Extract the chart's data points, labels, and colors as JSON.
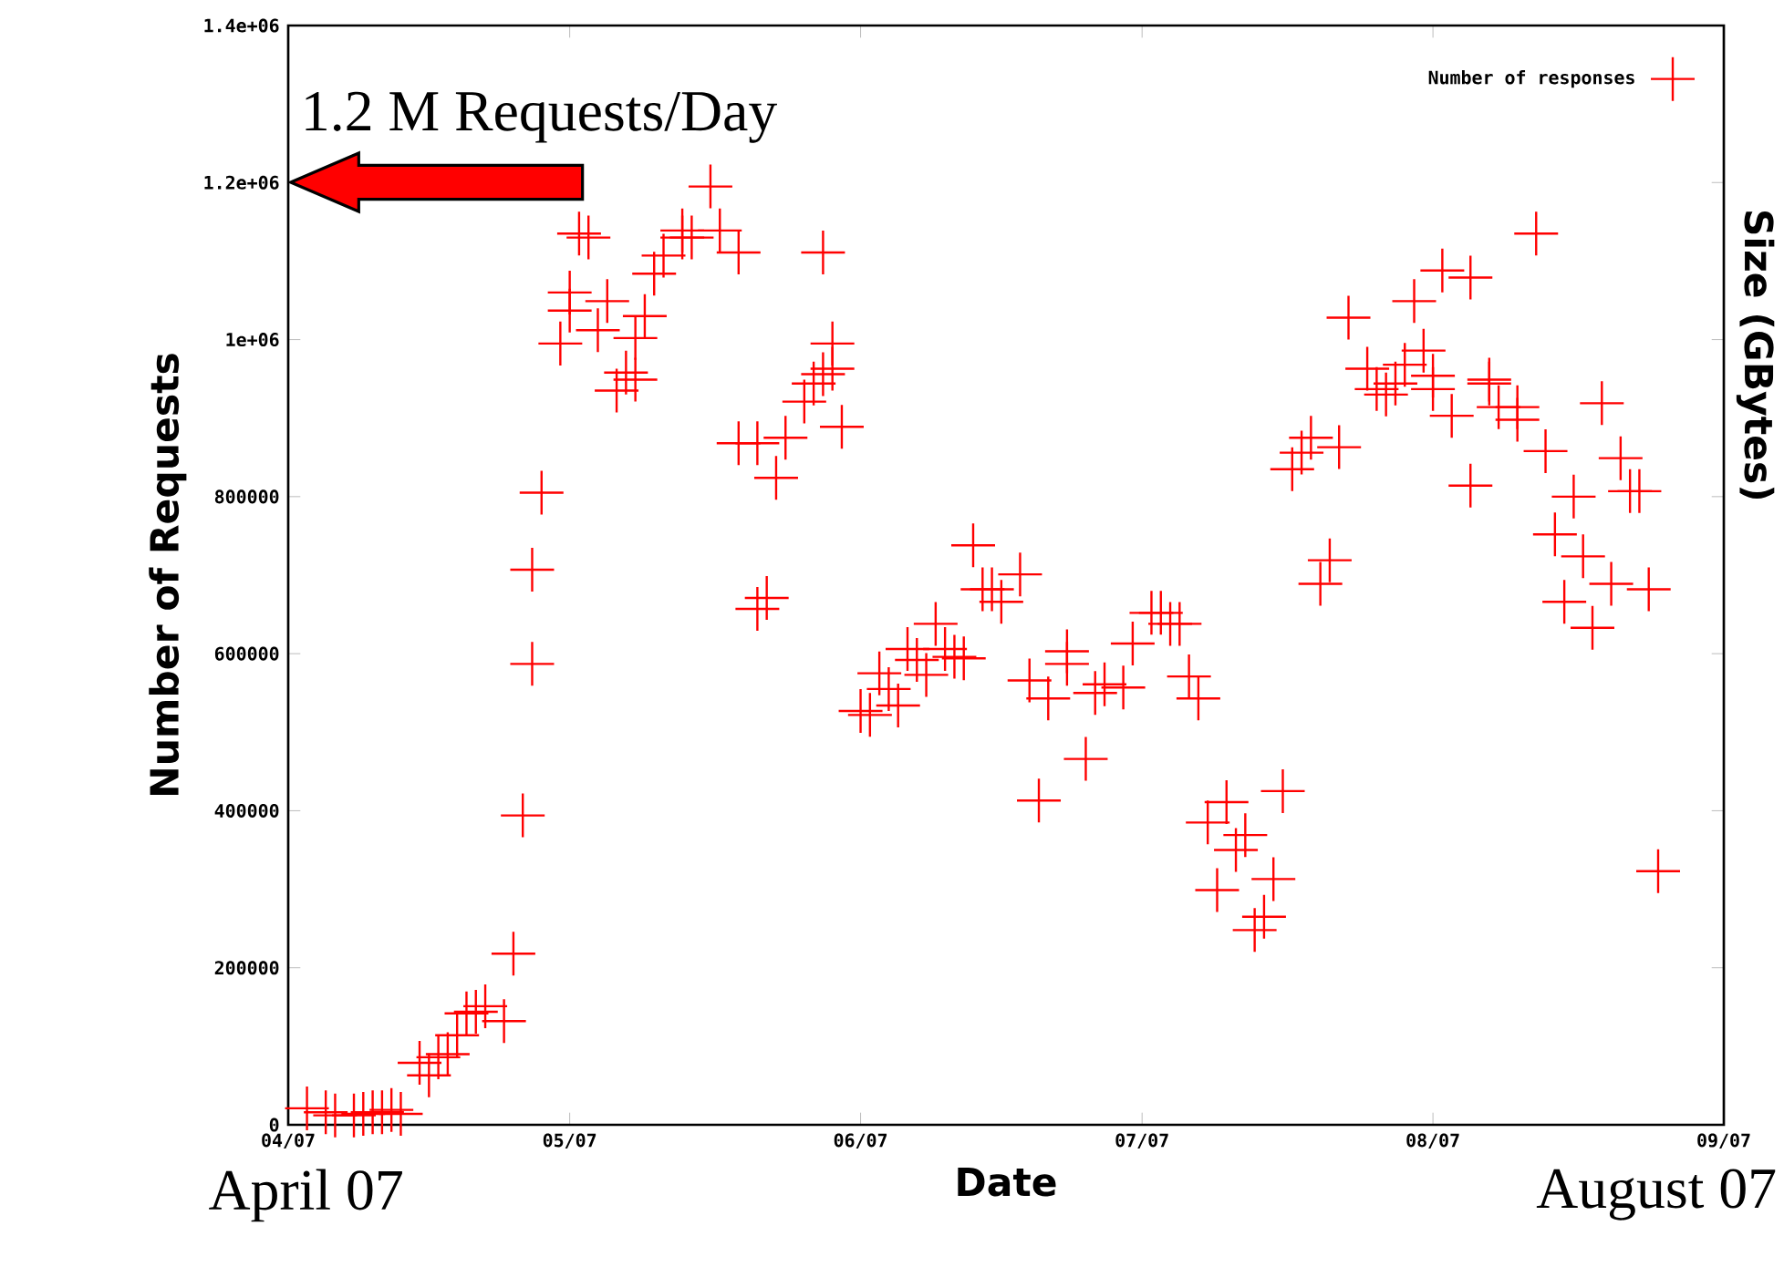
{
  "chart_data": {
    "type": "scatter",
    "xlabel": "Date",
    "ylabel": "Number of Requests",
    "y2label": "Size (GBytes)",
    "xlim": [
      "2007-04-01",
      "2007-09-01"
    ],
    "xticks": [
      {
        "value": "2007-04-01",
        "label": "04/07"
      },
      {
        "value": "2007-05-01",
        "label": "05/07"
      },
      {
        "value": "2007-06-01",
        "label": "06/07"
      },
      {
        "value": "2007-07-01",
        "label": "07/07"
      },
      {
        "value": "2007-08-01",
        "label": "08/07"
      },
      {
        "value": "2007-09-01",
        "label": "09/07"
      }
    ],
    "ylim": [
      0,
      1400000
    ],
    "yticks": [
      0,
      200000,
      400000,
      600000,
      800000,
      {
        "value": 1000000,
        "label": "1e+06"
      },
      {
        "value": 1200000,
        "label": "1.2e+06"
      },
      {
        "value": 1400000,
        "label": "1.4e+06"
      }
    ],
    "legend": "top right",
    "marker": "cross",
    "annotations": [
      "1.2 M Requests/Day",
      "April 07",
      "August 07"
    ],
    "series": [
      {
        "name": "Number of responses",
        "color": "#ff0000",
        "x": [
          "2007-04-03",
          "2007-04-05",
          "2007-04-06",
          "2007-04-08",
          "2007-04-09",
          "2007-04-10",
          "2007-04-11",
          "2007-04-12",
          "2007-04-13",
          "2007-04-15",
          "2007-04-16",
          "2007-04-17",
          "2007-04-18",
          "2007-04-19",
          "2007-04-20",
          "2007-04-21",
          "2007-04-22",
          "2007-04-24",
          "2007-04-25",
          "2007-04-26",
          "2007-04-27",
          "2007-04-27",
          "2007-04-28",
          "2007-04-30",
          "2007-05-01",
          "2007-05-01",
          "2007-05-02",
          "2007-05-03",
          "2007-05-04",
          "2007-05-05",
          "2007-05-06",
          "2007-05-07",
          "2007-05-08",
          "2007-05-08",
          "2007-05-09",
          "2007-05-10",
          "2007-05-11",
          "2007-05-13",
          "2007-05-13",
          "2007-05-14",
          "2007-05-16",
          "2007-05-17",
          "2007-05-19",
          "2007-05-28",
          "2007-05-19",
          "2007-05-21",
          "2007-05-23",
          "2007-05-24",
          "2007-05-22",
          "2007-05-21",
          "2007-05-26",
          "2007-05-27",
          "2007-05-28",
          "2007-05-29",
          "2007-05-29",
          "2007-05-30",
          "2007-06-01",
          "2007-06-02",
          "2007-06-03",
          "2007-06-04",
          "2007-06-05",
          "2007-06-06",
          "2007-06-07",
          "2007-06-08",
          "2007-06-09",
          "2007-06-10",
          "2007-06-11",
          "2007-06-12",
          "2007-06-13",
          "2007-06-14",
          "2007-06-15",
          "2007-06-16",
          "2007-06-18",
          "2007-06-19",
          "2007-06-21",
          "2007-06-20",
          "2007-06-23",
          "2007-06-23",
          "2007-06-25",
          "2007-06-26",
          "2007-06-27",
          "2007-06-29",
          "2007-06-30",
          "2007-07-02",
          "2007-07-03",
          "2007-07-04",
          "2007-07-05",
          "2007-07-06",
          "2007-07-07",
          "2007-07-08",
          "2007-07-10",
          "2007-07-12",
          "2007-07-11",
          "2007-07-09",
          "2007-07-15",
          "2007-07-13",
          "2007-07-14",
          "2007-07-16",
          "2007-07-17",
          "2007-07-19",
          "2007-07-18",
          "2007-07-22",
          "2007-07-20",
          "2007-07-21",
          "2007-07-23",
          "2007-07-25",
          "2007-07-26",
          "2007-07-27",
          "2007-07-28",
          "2007-07-29",
          "2007-07-30",
          "2007-07-31",
          "2007-08-01",
          "2007-08-01",
          "2007-08-02",
          "2007-08-03",
          "2007-08-05",
          "2007-08-05",
          "2007-08-07",
          "2007-08-07",
          "2007-08-08",
          "2007-08-10",
          "2007-08-10",
          "2007-08-12",
          "2007-08-13",
          "2007-08-14",
          "2007-08-16",
          "2007-08-15",
          "2007-08-17",
          "2007-08-18",
          "2007-08-19",
          "2007-08-20",
          "2007-08-21",
          "2007-08-22",
          "2007-08-23",
          "2007-08-24",
          "2007-08-25"
        ],
        "values": [
          21000,
          16000,
          12000,
          12000,
          14000,
          16000,
          16000,
          19000,
          14000,
          79000,
          63000,
          86000,
          90000,
          114000,
          142000,
          144000,
          151000,
          132000,
          218000,
          394000,
          587000,
          707000,
          805000,
          995000,
          1037000,
          1060000,
          1135000,
          1130000,
          1012000,
          1049000,
          935000,
          958000,
          949000,
          1002000,
          1030000,
          1084000,
          1107000,
          1130000,
          1139000,
          1130000,
          1195000,
          1139000,
          1111000,
          1111000,
          868000,
          868000,
          824000,
          875000,
          671000,
          657000,
          921000,
          944000,
          956000,
          963000,
          995000,
          889000,
          527000,
          522000,
          575000,
          555000,
          534000,
          606000,
          592000,
          573000,
          638000,
          606000,
          596000,
          594000,
          738000,
          682000,
          682000,
          666000,
          701000,
          566000,
          543000,
          413000,
          603000,
          587000,
          466000,
          550000,
          561000,
          557000,
          613000,
          652000,
          652000,
          638000,
          638000,
          571000,
          543000,
          385000,
          411000,
          369000,
          350000,
          299000,
          313000,
          248000,
          265000,
          425000,
          835000,
          875000,
          856000,
          863000,
          689000,
          719000,
          1028000,
          963000,
          937000,
          930000,
          944000,
          968000,
          1049000,
          986000,
          937000,
          954000,
          1088000,
          903000,
          814000,
          1079000,
          949000,
          944000,
          914000,
          898000,
          914000,
          1135000,
          858000,
          752000,
          800000,
          666000,
          724000,
          633000,
          919000,
          689000,
          849000,
          807000,
          807000,
          682000,
          323000
        ]
      }
    ]
  }
}
